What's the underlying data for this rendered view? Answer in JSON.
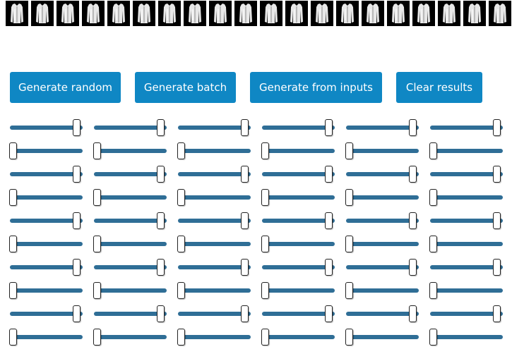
{
  "thumbnails": {
    "count": 20,
    "image_name": "generated-garment-image"
  },
  "buttons": {
    "generate_random": "Generate random",
    "generate_batch": "Generate batch",
    "generate_from_inputs": "Generate from inputs",
    "clear_results": "Clear results"
  },
  "colors": {
    "button_bg": "#0f87c4",
    "button_text": "#ffffff",
    "slider_track": "#2f6e96",
    "thumbnail_bg": "#000000"
  },
  "sliders": {
    "columns": 6,
    "rows": 10,
    "row_levels": [
      "max",
      "min",
      "max",
      "min",
      "max",
      "min",
      "max",
      "min",
      "max",
      "min"
    ]
  }
}
